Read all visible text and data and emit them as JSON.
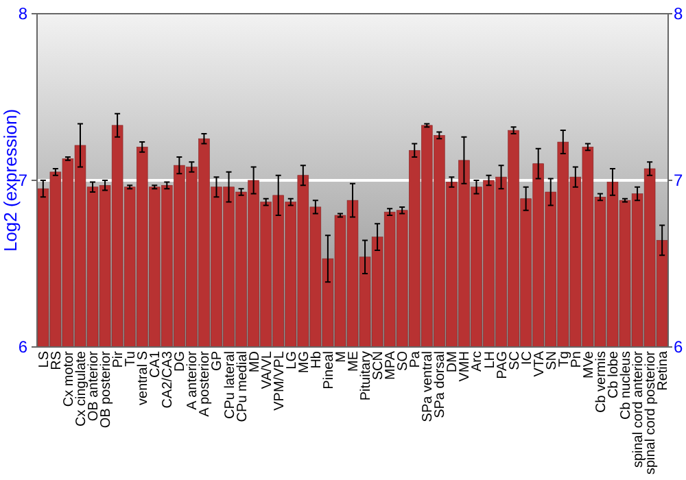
{
  "chart_data": {
    "type": "bar",
    "ylabel": "Log2 (expression)",
    "categories": [
      "LS",
      "RS",
      "Cx motor",
      "Cx cingulate",
      "OB anterior",
      "OB posterior",
      "Pir",
      "Tu",
      "ventral S",
      "CA1",
      "CA2/CA3",
      "DG",
      "A anterior",
      "A posterior",
      "GP",
      "CPu lateral",
      "CPu medial",
      "MD",
      "VA/VL",
      "VPM/VPL",
      "LG",
      "MG",
      "Hb",
      "Pineal",
      "M",
      "ME",
      "Pituitary",
      "SCN",
      "MPA",
      "SO",
      "Pa",
      "SPa ventral",
      "SPa dorsal",
      "DM",
      "VMH",
      "Arc",
      "LH",
      "PAG",
      "SC",
      "IC",
      "VTA",
      "SN",
      "Tg",
      "Pn",
      "MVe",
      "Cb vermis",
      "Cb lobe",
      "Cb nucleus",
      "spinal cord anterior",
      "spinal cord posterior",
      "Retina"
    ],
    "values": [
      6.95,
      7.05,
      7.13,
      7.21,
      6.96,
      6.97,
      7.33,
      6.96,
      7.2,
      6.96,
      6.97,
      7.09,
      7.08,
      7.25,
      6.96,
      6.96,
      6.93,
      7.0,
      6.87,
      6.91,
      6.87,
      7.03,
      6.84,
      6.53,
      6.79,
      6.88,
      6.54,
      6.66,
      6.81,
      6.82,
      7.18,
      7.33,
      7.27,
      6.99,
      7.12,
      6.96,
      7.0,
      7.02,
      7.3,
      6.89,
      7.1,
      6.93,
      7.23,
      7.02,
      7.2,
      6.9,
      6.99,
      6.88,
      6.92,
      7.07,
      6.64
    ],
    "errors": [
      0.05,
      0.02,
      0.01,
      0.13,
      0.03,
      0.03,
      0.07,
      0.01,
      0.03,
      0.01,
      0.02,
      0.05,
      0.03,
      0.03,
      0.06,
      0.09,
      0.02,
      0.08,
      0.02,
      0.12,
      0.02,
      0.06,
      0.04,
      0.14,
      0.01,
      0.1,
      0.1,
      0.08,
      0.02,
      0.02,
      0.04,
      0.01,
      0.02,
      0.03,
      0.14,
      0.04,
      0.03,
      0.07,
      0.02,
      0.07,
      0.09,
      0.08,
      0.07,
      0.06,
      0.02,
      0.02,
      0.08,
      0.01,
      0.04,
      0.04,
      0.09
    ],
    "color": "#b83232",
    "ylim": [
      6,
      8
    ],
    "yticks": [
      6,
      7,
      8
    ],
    "y2lim": [
      6,
      8
    ],
    "y2ticks": [
      6,
      7,
      8
    ],
    "ref_lines": [
      {
        "axis": "y",
        "value": 7,
        "color": "#ffffff"
      }
    ]
  }
}
